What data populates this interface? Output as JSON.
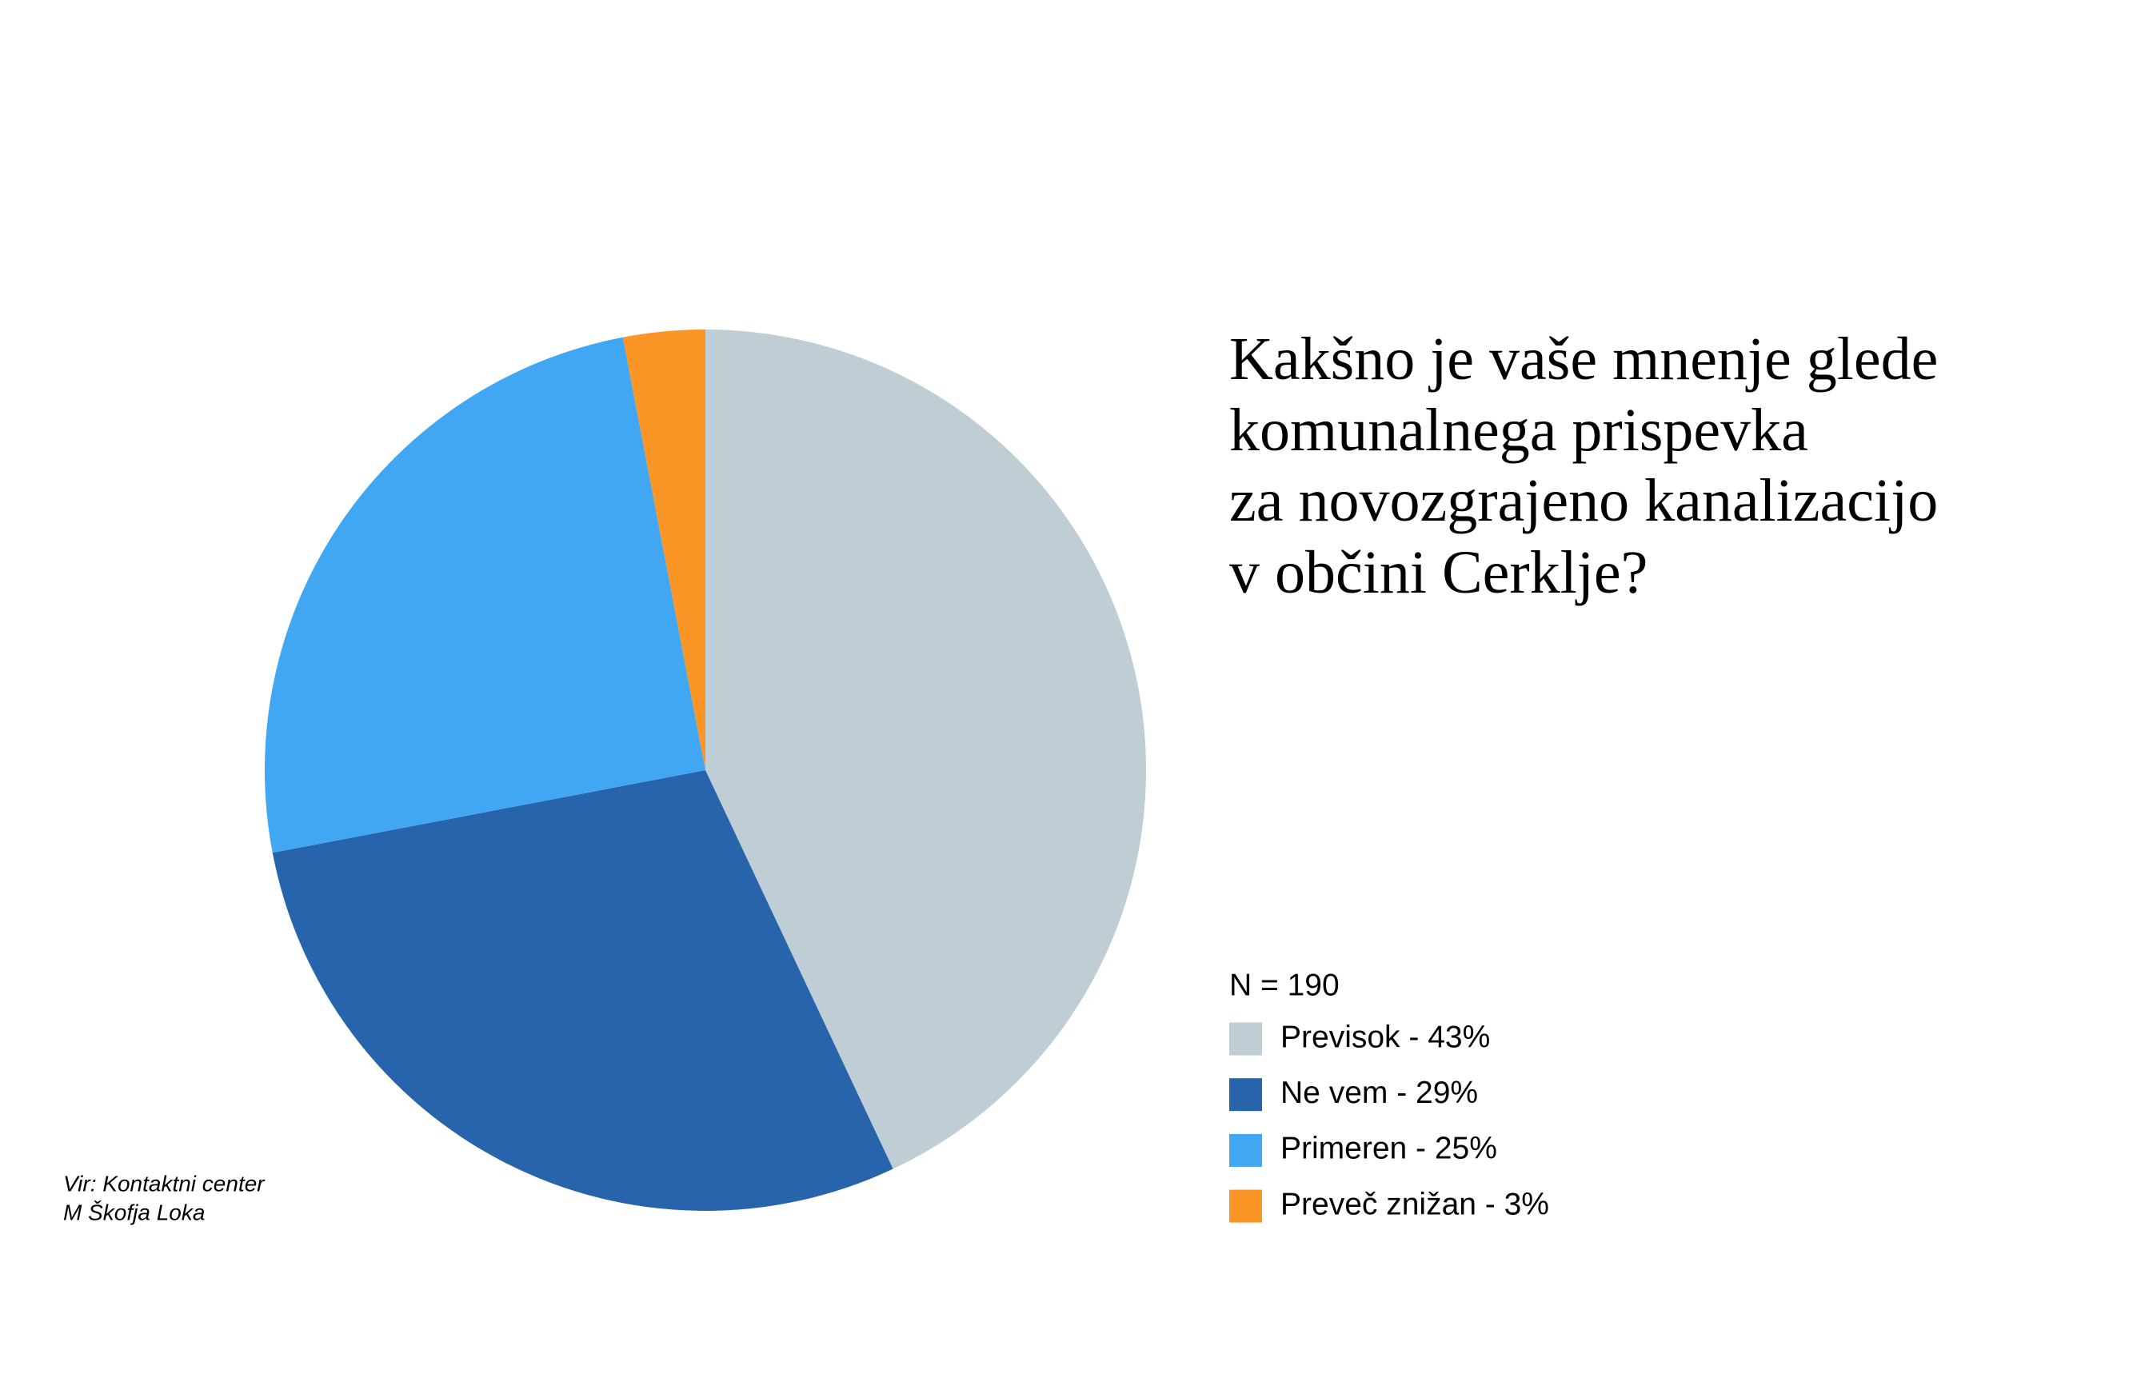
{
  "chart_data": {
    "type": "pie",
    "title": [
      "Kakšno je vaše mnenje glede",
      "komunalnega prispevka",
      "za novozgrajeno kanalizacijo",
      "v občini Cerklje?"
    ],
    "note": "N = 190",
    "categories": [
      "Previsok - 43%",
      "Ne vem - 29%",
      "Primeren - 25%",
      "Preveč znižan - 3%"
    ],
    "values": [
      43,
      29,
      25,
      3
    ],
    "colors": [
      "#bfcdd4",
      "#2764ac",
      "#42a7f2",
      "#fa9526"
    ],
    "source": [
      "Vir: Kontaktni center",
      "M Škofja Loka"
    ]
  }
}
